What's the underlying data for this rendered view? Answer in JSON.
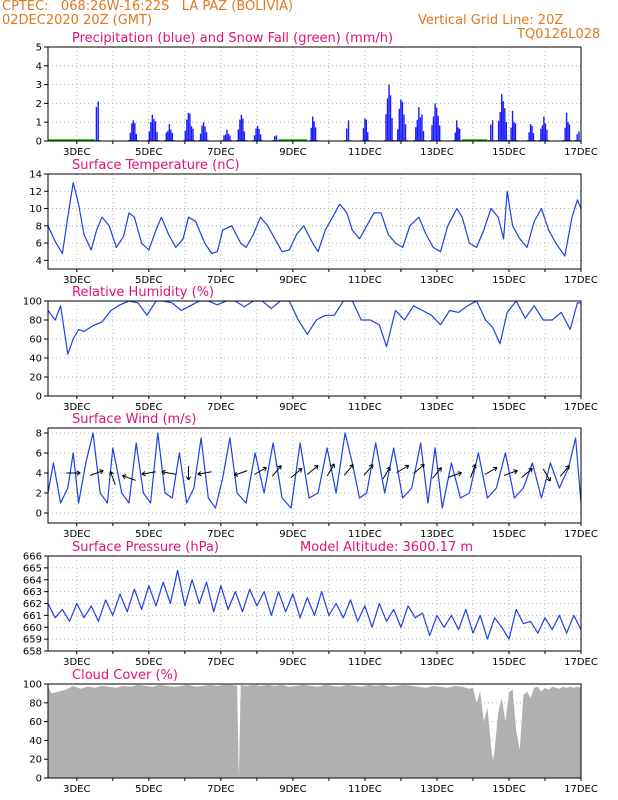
{
  "header": {
    "line1": "CPTEC:   068:26W-16:22S   LA PAZ (BOLIVIA)",
    "line2": "02DEC2020 20Z (GMT)",
    "grid_note": "Vertical Grid Line: 20Z",
    "run_code": "TQ0126L028"
  },
  "colors": {
    "precip": "#1a1aff",
    "snow": "#00b000",
    "line": "#2040e0",
    "cloud": "#b0b0b0",
    "title": "#e0107a",
    "header": "#e07820"
  },
  "x_axis": {
    "range_days": [
      2.2,
      17.0
    ],
    "tick_days": [
      3,
      5,
      7,
      9,
      11,
      13,
      15,
      17
    ],
    "tick_labels": [
      "3DEC",
      "5DEC",
      "7DEC",
      "9DEC",
      "11DEC",
      "13DEC",
      "15DEC",
      "17DEC"
    ]
  },
  "chart_data": [
    {
      "type": "bar",
      "title": "Precipitation (blue) and Snow Fall (green) (mm/h)",
      "ylim": [
        0,
        5
      ],
      "yticks": [
        0,
        1,
        2,
        3,
        4,
        5
      ],
      "series": [
        {
          "name": "Precipitation",
          "events": [
            [
              3.55,
              0.15,
              2.1
            ],
            [
              4.55,
              0.25,
              1.1
            ],
            [
              5.1,
              0.3,
              1.4
            ],
            [
              5.55,
              0.25,
              0.9
            ],
            [
              6.1,
              0.3,
              1.5
            ],
            [
              6.5,
              0.25,
              1.0
            ],
            [
              7.15,
              0.25,
              0.6
            ],
            [
              7.55,
              0.25,
              1.4
            ],
            [
              8.0,
              0.25,
              0.8
            ],
            [
              8.5,
              0.15,
              0.3
            ],
            [
              9.55,
              0.2,
              1.3
            ],
            [
              10.5,
              0.15,
              1.1
            ],
            [
              11.0,
              0.2,
              1.2
            ],
            [
              11.65,
              0.25,
              3.0
            ],
            [
              12.0,
              0.3,
              2.2
            ],
            [
              12.5,
              0.3,
              1.8
            ],
            [
              12.95,
              0.3,
              2.0
            ],
            [
              13.55,
              0.2,
              1.1
            ],
            [
              14.5,
              0.15,
              1.1
            ],
            [
              14.8,
              0.3,
              2.5
            ],
            [
              15.1,
              0.2,
              1.6
            ],
            [
              15.6,
              0.2,
              0.9
            ],
            [
              15.95,
              0.25,
              1.3
            ],
            [
              16.6,
              0.2,
              1.5
            ],
            [
              16.9,
              0.15,
              0.5
            ]
          ]
        },
        {
          "name": "Snow Fall",
          "values": [
            0
          ]
        }
      ]
    },
    {
      "type": "line",
      "title": "Surface Temperature (nC)",
      "ylim": [
        3,
        14
      ],
      "yticks": [
        4,
        6,
        8,
        10,
        12,
        14
      ],
      "x": [
        2.2,
        2.4,
        2.6,
        2.75,
        2.9,
        3.05,
        3.2,
        3.4,
        3.55,
        3.7,
        3.9,
        4.1,
        4.3,
        4.45,
        4.6,
        4.8,
        5.0,
        5.2,
        5.35,
        5.55,
        5.75,
        5.95,
        6.1,
        6.3,
        6.55,
        6.75,
        6.9,
        7.05,
        7.3,
        7.55,
        7.7,
        7.9,
        8.1,
        8.3,
        8.5,
        8.7,
        8.9,
        9.1,
        9.3,
        9.55,
        9.7,
        9.9,
        10.1,
        10.3,
        10.5,
        10.65,
        10.85,
        11.05,
        11.25,
        11.45,
        11.65,
        11.85,
        12.05,
        12.25,
        12.5,
        12.7,
        12.9,
        13.1,
        13.3,
        13.55,
        13.7,
        13.9,
        14.1,
        14.3,
        14.5,
        14.7,
        14.85,
        14.95,
        15.1,
        15.3,
        15.5,
        15.7,
        15.9,
        16.1,
        16.3,
        16.55,
        16.75,
        16.9,
        17.0
      ],
      "values": [
        8.0,
        6.2,
        4.8,
        9.0,
        13.0,
        10.5,
        7.0,
        5.2,
        7.5,
        9.0,
        8.0,
        5.5,
        6.8,
        9.5,
        9.0,
        6.0,
        5.2,
        7.5,
        9.0,
        7.0,
        5.5,
        6.5,
        9.0,
        8.5,
        6.0,
        4.8,
        5.0,
        7.5,
        8.0,
        6.0,
        5.5,
        7.0,
        9.0,
        8.0,
        6.5,
        5.0,
        5.2,
        7.0,
        8.0,
        6.0,
        5.0,
        7.5,
        9.0,
        10.5,
        9.5,
        7.5,
        6.5,
        8.0,
        9.5,
        9.5,
        7.0,
        6.0,
        5.5,
        8.0,
        9.0,
        7.0,
        5.5,
        5.0,
        8.0,
        10.0,
        9.0,
        6.0,
        5.5,
        7.5,
        10.0,
        9.0,
        6.5,
        12.0,
        8.0,
        6.5,
        5.5,
        8.5,
        10.0,
        7.5,
        6.0,
        4.5,
        9.0,
        11.0,
        10.0
      ]
    },
    {
      "type": "line",
      "title": "Relative Humidity (%)",
      "ylim": [
        0,
        100
      ],
      "yticks": [
        0,
        20,
        40,
        60,
        80,
        100
      ],
      "x": [
        2.2,
        2.4,
        2.55,
        2.75,
        2.9,
        3.05,
        3.2,
        3.45,
        3.7,
        3.95,
        4.2,
        4.45,
        4.7,
        4.95,
        5.2,
        5.4,
        5.65,
        5.9,
        6.15,
        6.4,
        6.65,
        6.9,
        7.15,
        7.4,
        7.65,
        7.9,
        8.15,
        8.4,
        8.65,
        8.9,
        9.15,
        9.4,
        9.65,
        9.9,
        10.15,
        10.4,
        10.65,
        10.9,
        11.15,
        11.4,
        11.6,
        11.85,
        12.1,
        12.35,
        12.6,
        12.85,
        13.1,
        13.35,
        13.6,
        13.85,
        14.1,
        14.35,
        14.55,
        14.75,
        14.95,
        15.2,
        15.45,
        15.7,
        15.95,
        16.2,
        16.45,
        16.7,
        16.9,
        17.0
      ],
      "values": [
        90,
        80,
        95,
        44,
        60,
        70,
        68,
        74,
        78,
        90,
        96,
        100,
        98,
        85,
        100,
        100,
        98,
        90,
        95,
        100,
        100,
        96,
        100,
        100,
        94,
        100,
        100,
        92,
        100,
        100,
        80,
        65,
        80,
        85,
        85,
        100,
        100,
        80,
        80,
        75,
        52,
        90,
        80,
        95,
        90,
        85,
        75,
        90,
        88,
        95,
        100,
        80,
        72,
        55,
        88,
        100,
        82,
        95,
        80,
        80,
        88,
        70,
        98,
        98
      ]
    },
    {
      "type": "line",
      "title": "Surface Wind (m/s)",
      "ylim": [
        -1,
        8.5
      ],
      "yticks": [
        0,
        2,
        4,
        6,
        8
      ],
      "x": [
        2.2,
        2.35,
        2.55,
        2.75,
        2.9,
        3.05,
        3.25,
        3.45,
        3.65,
        3.85,
        4.0,
        4.25,
        4.45,
        4.65,
        4.85,
        5.05,
        5.25,
        5.45,
        5.65,
        5.85,
        6.05,
        6.25,
        6.45,
        6.65,
        6.85,
        7.05,
        7.25,
        7.45,
        7.7,
        7.95,
        8.2,
        8.45,
        8.7,
        8.95,
        9.2,
        9.45,
        9.7,
        9.95,
        10.2,
        10.45,
        10.65,
        10.85,
        11.05,
        11.3,
        11.55,
        11.8,
        12.05,
        12.3,
        12.55,
        12.75,
        12.95,
        13.15,
        13.4,
        13.65,
        13.9,
        14.15,
        14.4,
        14.65,
        14.9,
        15.15,
        15.4,
        15.65,
        15.9,
        16.15,
        16.4,
        16.65,
        16.85,
        17.0
      ],
      "values": [
        2.0,
        5.0,
        1.0,
        2.5,
        6.0,
        1.0,
        5.0,
        8.0,
        2.0,
        1.0,
        6.5,
        2.0,
        1.0,
        7.0,
        2.0,
        1.0,
        8.0,
        2.0,
        1.5,
        6.0,
        1.0,
        2.5,
        7.5,
        1.5,
        0.5,
        3.5,
        7.5,
        2.0,
        1.0,
        6.0,
        2.0,
        7.0,
        1.5,
        0.5,
        7.0,
        1.5,
        2.0,
        6.5,
        2.0,
        8.0,
        5.0,
        1.5,
        2.0,
        7.0,
        2.0,
        6.5,
        1.5,
        2.5,
        7.0,
        1.0,
        6.5,
        0.5,
        5.0,
        1.5,
        2.0,
        6.0,
        1.5,
        2.5,
        6.0,
        1.5,
        2.5,
        5.0,
        1.5,
        5.0,
        2.5,
        4.5,
        7.5,
        1.0
      ],
      "arrows": [
        [
          2.9,
          4.0,
          0
        ],
        [
          3.55,
          4.0,
          -20
        ],
        [
          4.0,
          3.5,
          -110
        ],
        [
          4.45,
          3.5,
          -160
        ],
        [
          5.0,
          4.0,
          170
        ],
        [
          5.55,
          4.0,
          -170
        ],
        [
          6.1,
          4.0,
          90
        ],
        [
          6.55,
          4.0,
          170
        ],
        [
          7.55,
          4.0,
          160
        ],
        [
          8.1,
          4.2,
          -30
        ],
        [
          8.55,
          4.2,
          -50
        ],
        [
          9.1,
          4.0,
          -40
        ],
        [
          9.55,
          4.3,
          -40
        ],
        [
          10.05,
          4.3,
          -60
        ],
        [
          10.55,
          4.3,
          -50
        ],
        [
          11.1,
          4.3,
          -50
        ],
        [
          11.6,
          4.0,
          -60
        ],
        [
          12.05,
          4.4,
          -30
        ],
        [
          12.5,
          4.4,
          -40
        ],
        [
          13.0,
          4.0,
          -50
        ],
        [
          13.5,
          3.8,
          -20
        ],
        [
          14.0,
          4.2,
          -70
        ],
        [
          14.5,
          4.2,
          -30
        ],
        [
          15.05,
          4.0,
          -20
        ],
        [
          15.5,
          4.0,
          -40
        ],
        [
          16.05,
          3.8,
          60
        ],
        [
          16.55,
          4.2,
          -50
        ]
      ]
    },
    {
      "type": "line",
      "title": "Surface Pressure (hPa)",
      "annotation": "Model Altitude: 3600.17 m",
      "ylim": [
        658,
        666
      ],
      "yticks": [
        658,
        659,
        660,
        661,
        662,
        663,
        664,
        665,
        666
      ],
      "x": [
        2.2,
        2.4,
        2.6,
        2.8,
        3.0,
        3.2,
        3.4,
        3.6,
        3.8,
        4.0,
        4.2,
        4.4,
        4.6,
        4.8,
        5.0,
        5.2,
        5.4,
        5.6,
        5.8,
        6.0,
        6.2,
        6.4,
        6.6,
        6.8,
        7.0,
        7.2,
        7.4,
        7.6,
        7.8,
        8.0,
        8.2,
        8.4,
        8.6,
        8.8,
        9.0,
        9.2,
        9.4,
        9.6,
        9.8,
        10.0,
        10.2,
        10.4,
        10.6,
        10.8,
        11.0,
        11.2,
        11.4,
        11.6,
        11.8,
        12.0,
        12.2,
        12.4,
        12.6,
        12.8,
        13.0,
        13.2,
        13.4,
        13.6,
        13.8,
        14.0,
        14.2,
        14.4,
        14.6,
        14.8,
        15.0,
        15.2,
        15.4,
        15.6,
        15.8,
        16.0,
        16.2,
        16.4,
        16.6,
        16.8,
        17.0
      ],
      "values": [
        662.0,
        660.8,
        661.5,
        660.5,
        662.0,
        660.8,
        661.8,
        660.5,
        662.3,
        661.0,
        662.8,
        661.3,
        663.2,
        661.5,
        663.5,
        661.8,
        663.8,
        662.0,
        664.8,
        661.8,
        664.0,
        662.0,
        663.8,
        661.3,
        663.5,
        661.5,
        663.0,
        661.3,
        663.2,
        661.8,
        663.0,
        661.0,
        663.0,
        661.3,
        662.8,
        660.8,
        662.5,
        661.0,
        663.0,
        661.0,
        662.0,
        660.8,
        662.3,
        660.5,
        661.8,
        660.0,
        662.0,
        660.5,
        661.5,
        660.0,
        661.8,
        660.8,
        661.2,
        659.3,
        661.0,
        660.0,
        661.0,
        659.8,
        661.5,
        659.5,
        661.0,
        659.0,
        660.8,
        660.0,
        659.0,
        661.5,
        660.3,
        660.5,
        659.5,
        660.8,
        659.8,
        661.0,
        659.5,
        661.0,
        659.8
      ]
    },
    {
      "type": "area",
      "title": "Cloud Cover (%)",
      "ylim": [
        0,
        100
      ],
      "yticks": [
        0,
        20,
        40,
        60,
        80,
        100
      ],
      "x": [
        2.2,
        2.3,
        2.5,
        2.7,
        2.9,
        3.1,
        3.3,
        3.5,
        3.7,
        3.9,
        4.1,
        4.3,
        4.5,
        4.7,
        4.9,
        5.1,
        5.3,
        5.5,
        5.7,
        5.9,
        6.1,
        6.3,
        6.5,
        6.7,
        6.9,
        7.1,
        7.3,
        7.45,
        7.5,
        7.55,
        7.7,
        7.9,
        8.1,
        8.3,
        8.5,
        8.7,
        8.9,
        9.1,
        9.3,
        9.5,
        9.7,
        9.9,
        10.1,
        10.3,
        10.5,
        10.7,
        10.9,
        11.1,
        11.3,
        11.5,
        11.7,
        11.9,
        12.1,
        12.3,
        12.5,
        12.7,
        12.9,
        13.1,
        13.3,
        13.5,
        13.7,
        13.9,
        14.0,
        14.1,
        14.2,
        14.3,
        14.4,
        14.5,
        14.55,
        14.6,
        14.7,
        14.8,
        14.9,
        15.0,
        15.1,
        15.2,
        15.3,
        15.4,
        15.5,
        15.6,
        15.7,
        15.8,
        15.9,
        16.0,
        16.1,
        16.2,
        16.3,
        16.4,
        16.5,
        16.6,
        16.7,
        16.8,
        16.9,
        17.0
      ],
      "values": [
        97,
        90,
        92,
        94,
        98,
        95,
        97,
        96,
        98,
        97,
        96,
        98,
        97,
        99,
        98,
        97,
        99,
        98,
        97,
        98,
        99,
        97,
        98,
        99,
        98,
        99,
        99,
        98,
        0,
        99,
        98,
        99,
        98,
        99,
        98,
        99,
        97,
        98,
        99,
        98,
        97,
        99,
        98,
        97,
        99,
        98,
        97,
        99,
        98,
        99,
        97,
        98,
        99,
        98,
        97,
        96,
        98,
        97,
        96,
        98,
        97,
        95,
        96,
        80,
        92,
        60,
        75,
        35,
        18,
        30,
        70,
        85,
        60,
        90,
        95,
        50,
        30,
        88,
        92,
        85,
        96,
        97,
        92,
        96,
        94,
        97,
        96,
        95,
        97,
        96,
        97,
        96,
        97,
        96
      ]
    }
  ]
}
